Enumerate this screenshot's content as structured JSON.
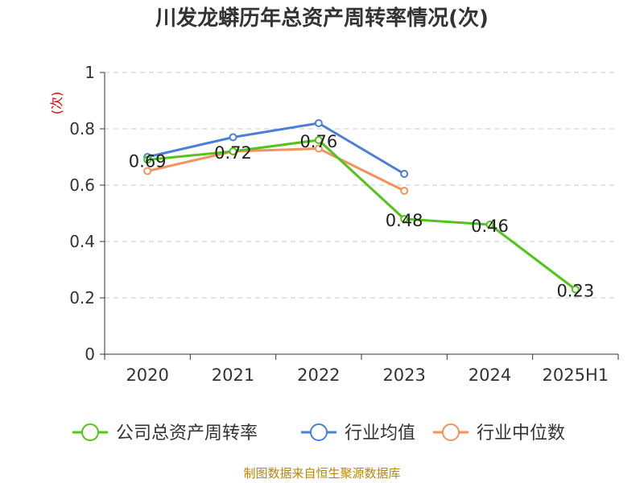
{
  "chart_data": {
    "type": "line",
    "title": "川发龙蟒历年总资产周转率情况(次)",
    "ylabel": "(次)",
    "xlabel": "",
    "categories": [
      "2020",
      "2021",
      "2022",
      "2023",
      "2024",
      "2025H1"
    ],
    "ylim": [
      0,
      1
    ],
    "yticks": [
      "0",
      "0.2",
      "0.4",
      "0.6",
      "0.8",
      "1"
    ],
    "grid": true,
    "legend_position": "bottom",
    "series": [
      {
        "name": "公司总资产周转率",
        "color": "#52c41a",
        "values": [
          0.69,
          0.72,
          0.76,
          0.48,
          0.46,
          0.23
        ],
        "labels": [
          "0.69",
          "0.72",
          "0.76",
          "0.48",
          "0.46",
          "0.23"
        ]
      },
      {
        "name": "行业均值",
        "color": "#4a7fd6",
        "values": [
          0.7,
          0.77,
          0.82,
          0.64,
          null,
          null
        ]
      },
      {
        "name": "行业中位数",
        "color": "#f4925f",
        "values": [
          0.65,
          0.72,
          0.73,
          0.58,
          null,
          null
        ]
      }
    ]
  },
  "source": "制图数据来自恒生聚源数据库"
}
